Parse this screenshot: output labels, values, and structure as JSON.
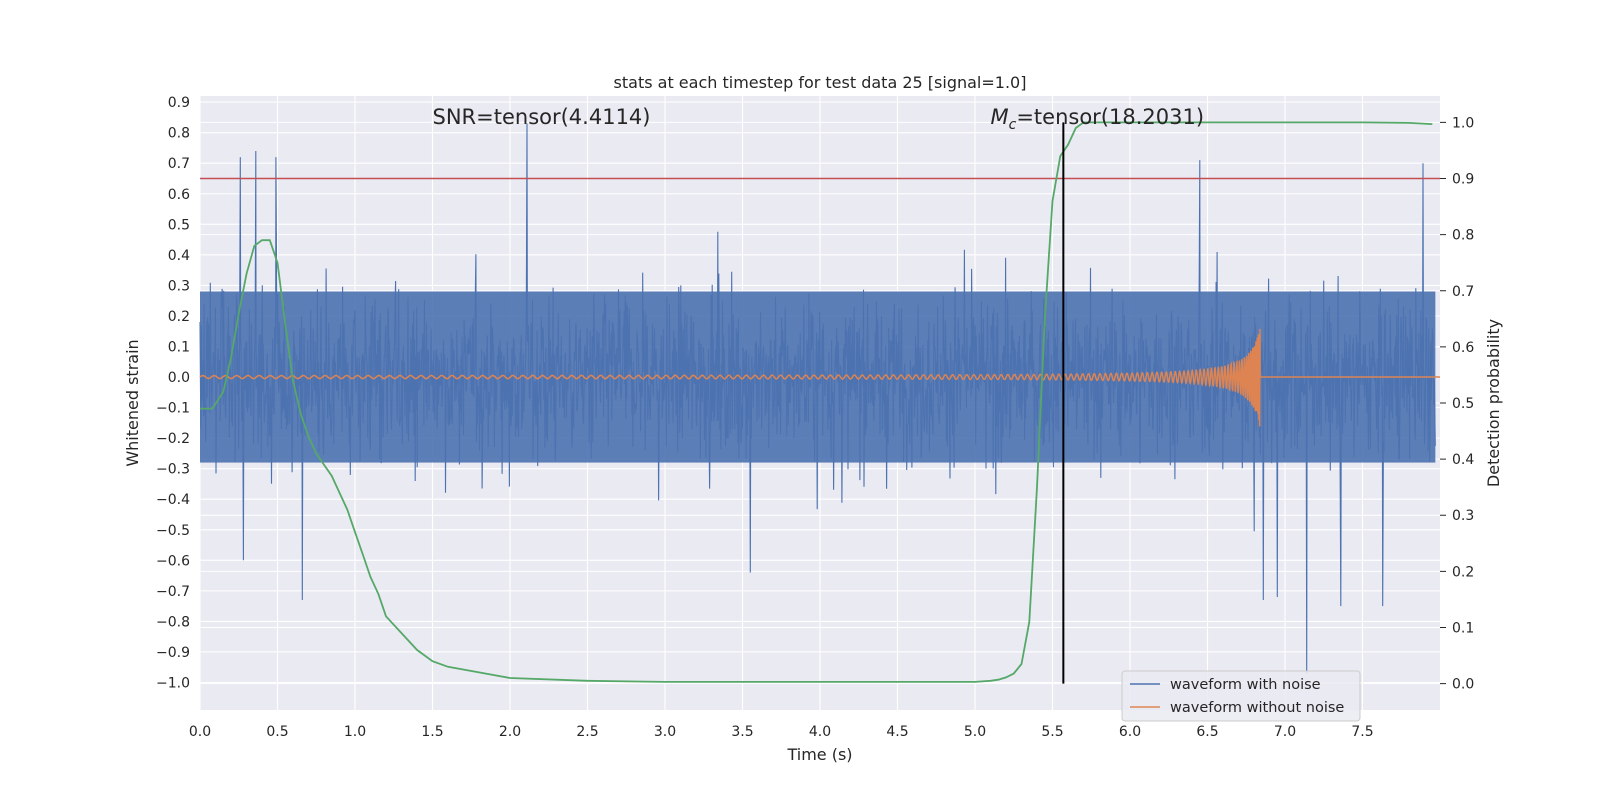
{
  "chart_data": {
    "type": "line",
    "title": "stats at each timestep for test data 25 [signal=1.0]",
    "xlabel": "Time (s)",
    "ylabel": "Whitened strain",
    "y2label": "Detection probability",
    "xlim": [
      0.0,
      8.0
    ],
    "ylim": [
      -1.09,
      0.92
    ],
    "y2lim": [
      -0.047,
      1.047
    ],
    "grid": true,
    "legend_position": "lower-right",
    "xticks": [
      "0.0",
      "0.5",
      "1.0",
      "1.5",
      "2.0",
      "2.5",
      "3.0",
      "3.5",
      "4.0",
      "4.5",
      "5.0",
      "5.5",
      "6.0",
      "6.5",
      "7.0",
      "7.5"
    ],
    "yticks": [
      "0.9",
      "0.8",
      "0.7",
      "0.6",
      "0.5",
      "0.4",
      "0.3",
      "0.2",
      "0.1",
      "0.0",
      "−0.1",
      "−0.2",
      "−0.3",
      "−0.4",
      "−0.5",
      "−0.6",
      "−0.7",
      "−0.8",
      "−0.9",
      "−1.0"
    ],
    "y2ticks": [
      "0.0",
      "0.1",
      "0.2",
      "0.3",
      "0.4",
      "0.5",
      "0.6",
      "0.7",
      "0.8",
      "0.9",
      "1.0"
    ],
    "annotations": {
      "snr": {
        "text": "SNR=tensor(4.4114)",
        "x": 1.5
      },
      "mc": {
        "prefix": "M",
        "sub": "c",
        "text": "=tensor(18.2031)",
        "x": 5.1
      }
    },
    "threshold": {
      "value": 0.9,
      "axis": "y2",
      "color": "#c44e52"
    },
    "vline": {
      "x": 5.57,
      "color": "#000000"
    },
    "series": [
      {
        "name": "waveform with noise",
        "color": "#4c72b0",
        "kind": "noise",
        "envelope_core": 0.28,
        "typical_peak": 0.45,
        "extreme_peaks": [
          {
            "x": 2.11,
            "y": 0.83
          },
          {
            "x": 0.36,
            "y": 0.74
          },
          {
            "x": 0.26,
            "y": 0.72
          },
          {
            "x": 0.49,
            "y": 0.72
          },
          {
            "x": 7.14,
            "y": -0.97
          },
          {
            "x": 0.66,
            "y": -0.73
          },
          {
            "x": 7.63,
            "y": -0.75
          },
          {
            "x": 6.86,
            "y": -0.73
          },
          {
            "x": 7.36,
            "y": -0.75
          },
          {
            "x": 6.95,
            "y": -0.72
          },
          {
            "x": 6.45,
            "y": 0.71
          },
          {
            "x": 7.89,
            "y": 0.7
          },
          {
            "x": 3.55,
            "y": -0.64
          },
          {
            "x": 0.28,
            "y": -0.6
          }
        ]
      },
      {
        "name": "waveform without noise",
        "color": "#dd8452",
        "kind": "chirp",
        "t_merger": 6.84,
        "start_amplitude": 0.004,
        "peak_amplitude": 0.17
      },
      {
        "name": "detection probability",
        "color": "#55a868",
        "axis": "y2",
        "x": [
          0.0,
          0.08,
          0.15,
          0.2,
          0.25,
          0.3,
          0.35,
          0.4,
          0.45,
          0.5,
          0.55,
          0.6,
          0.65,
          0.7,
          0.75,
          0.8,
          0.85,
          0.9,
          0.95,
          1.0,
          1.05,
          1.1,
          1.15,
          1.2,
          1.3,
          1.4,
          1.5,
          1.6,
          1.8,
          2.0,
          2.5,
          3.0,
          3.5,
          4.0,
          4.5,
          4.8,
          5.0,
          5.1,
          5.15,
          5.2,
          5.25,
          5.3,
          5.35,
          5.4,
          5.45,
          5.5,
          5.55,
          5.6,
          5.65,
          5.7,
          5.75,
          5.8,
          6.0,
          6.5,
          7.0,
          7.5,
          7.8,
          7.95
        ],
        "values": [
          0.49,
          0.49,
          0.52,
          0.58,
          0.66,
          0.73,
          0.78,
          0.79,
          0.79,
          0.75,
          0.64,
          0.54,
          0.48,
          0.44,
          0.41,
          0.39,
          0.37,
          0.34,
          0.31,
          0.27,
          0.23,
          0.19,
          0.16,
          0.12,
          0.09,
          0.06,
          0.04,
          0.03,
          0.02,
          0.01,
          0.005,
          0.003,
          0.003,
          0.003,
          0.003,
          0.003,
          0.003,
          0.005,
          0.007,
          0.011,
          0.018,
          0.035,
          0.11,
          0.35,
          0.65,
          0.86,
          0.94,
          0.96,
          0.99,
          1.0,
          1.0,
          1.0,
          1.0,
          1.0,
          1.0,
          1.0,
          0.999,
          0.997
        ]
      }
    ]
  }
}
